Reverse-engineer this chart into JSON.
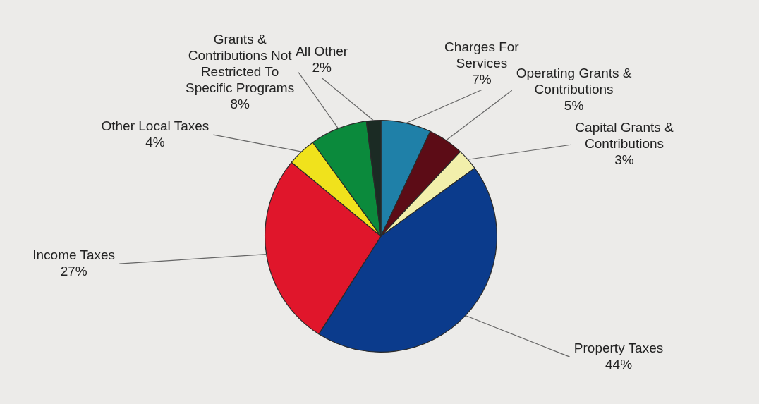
{
  "chart_data": {
    "type": "pie",
    "categories": [
      "Charges For Services",
      "Operating Grants & Contributions",
      "Capital Grants & Contributions",
      "Property Taxes",
      "Income Taxes",
      "Other Local Taxes",
      "Grants & Contributions Not Restricted To Specific Programs",
      "All Other"
    ],
    "values": [
      7,
      5,
      3,
      44,
      27,
      4,
      8,
      2
    ],
    "value_labels": [
      "7%",
      "5%",
      "3%",
      "44%",
      "27%",
      "4%",
      "8%",
      "2%"
    ],
    "colors": [
      "#1f80a8",
      "#5c0c16",
      "#f2efab",
      "#0b3b8c",
      "#e0162b",
      "#f0e21c",
      "#0b8a3c",
      "#1b2b24"
    ]
  }
}
